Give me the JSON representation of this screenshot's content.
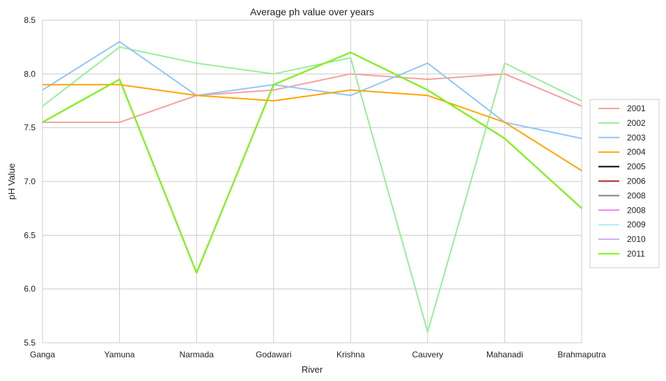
{
  "chart_data": {
    "type": "line",
    "title": "Average ph value over years",
    "xlabel": "River",
    "ylabel": "pH Value",
    "categories": [
      "Ganga",
      "Yamuna",
      "Narmada",
      "Godawari",
      "Krishna",
      "Cauvery",
      "Mahanadi",
      "Brahmaputra"
    ],
    "ylim": [
      5.5,
      8.5
    ],
    "yticks": [
      "5.5",
      "6.0",
      "6.5",
      "7.0",
      "7.5",
      "8.0",
      "8.5"
    ],
    "grid": true,
    "legend_position": "right",
    "series": [
      {
        "name": "2001",
        "color": "#f4a09c",
        "values": [
          7.55,
          7.55,
          7.8,
          7.85,
          8.0,
          7.95,
          8.0,
          7.7
        ]
      },
      {
        "name": "2002",
        "color": "#98ee98",
        "values": [
          7.7,
          8.25,
          8.1,
          8.0,
          8.15,
          5.6,
          8.1,
          7.75
        ]
      },
      {
        "name": "2003",
        "color": "#92c5f8",
        "values": [
          7.85,
          8.3,
          7.8,
          7.9,
          7.8,
          8.1,
          7.55,
          7.4
        ]
      },
      {
        "name": "2004",
        "color": "#ffa500",
        "values": [
          7.9,
          7.9,
          7.8,
          7.75,
          7.85,
          7.8,
          7.55,
          7.1
        ]
      },
      {
        "name": "2005",
        "color": "#000000",
        "values": [
          7.55,
          7.95,
          6.15,
          7.9,
          8.2,
          7.85,
          7.4,
          6.75
        ]
      },
      {
        "name": "2006",
        "color": "#b22222",
        "values": [
          7.55,
          7.95,
          6.15,
          7.9,
          8.2,
          7.85,
          7.4,
          6.75
        ]
      },
      {
        "name": "2008",
        "color": "#808080",
        "values": [
          7.55,
          7.95,
          6.15,
          7.9,
          8.2,
          7.85,
          7.4,
          6.75
        ]
      },
      {
        "name": "2008",
        "color": "#ee82ee",
        "values": [
          7.55,
          7.95,
          6.15,
          7.9,
          8.2,
          7.85,
          7.4,
          6.75
        ]
      },
      {
        "name": "2009",
        "color": "#afeeee",
        "values": [
          7.55,
          7.95,
          6.15,
          7.9,
          8.2,
          7.85,
          7.4,
          6.75
        ]
      },
      {
        "name": "2010",
        "color": "#ccaaff",
        "values": [
          7.55,
          7.95,
          6.15,
          7.9,
          8.2,
          7.85,
          7.4,
          6.75
        ]
      },
      {
        "name": "2011",
        "color": "#7cfc00",
        "values": [
          7.55,
          7.95,
          6.15,
          7.9,
          8.2,
          7.85,
          7.4,
          6.75
        ]
      }
    ]
  }
}
